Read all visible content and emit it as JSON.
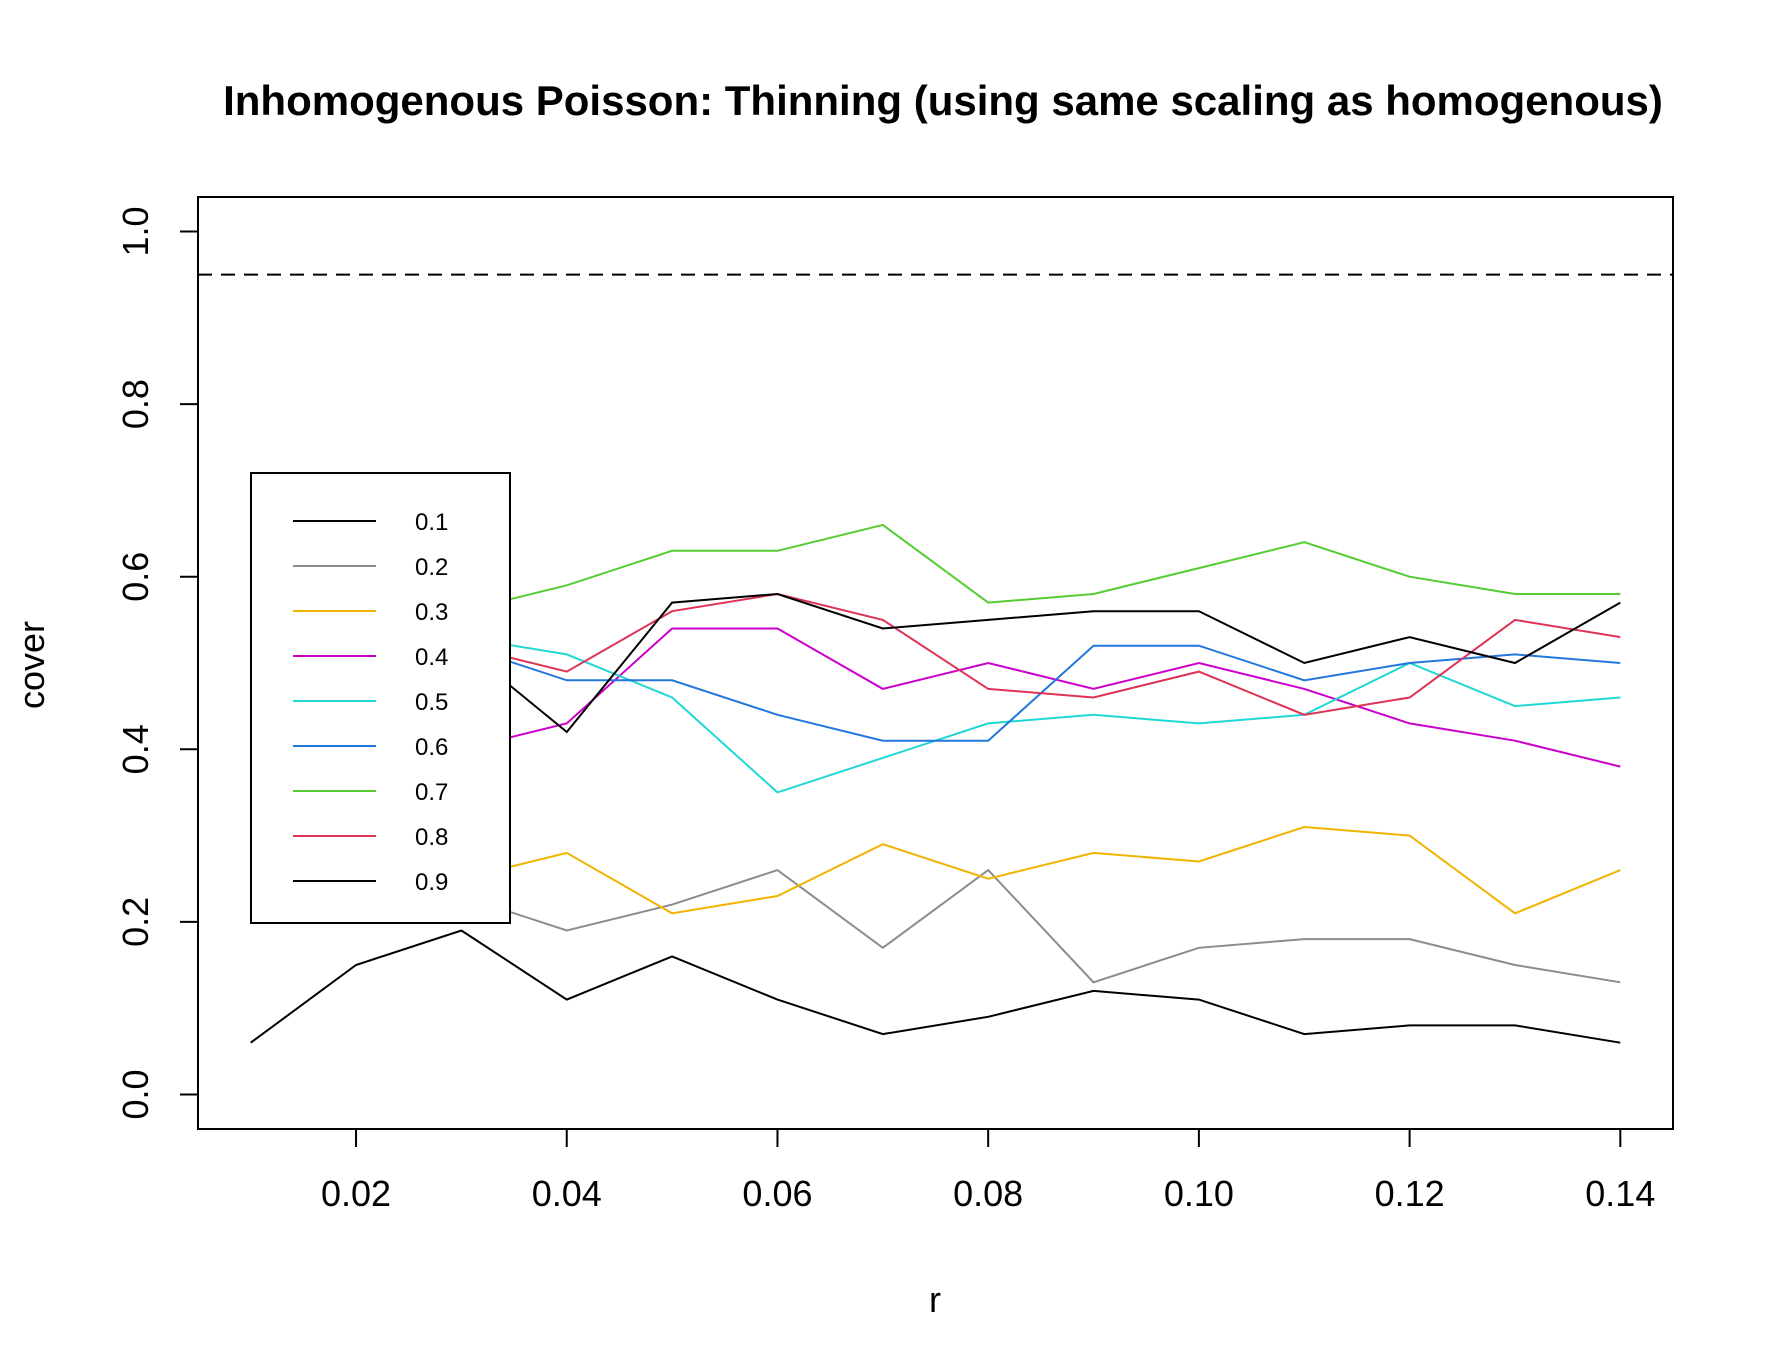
{
  "chart_data": {
    "type": "line",
    "title": "Inhomogenous Poisson: Thinning (using same scaling as homogenous)",
    "xlabel": "r",
    "ylabel": "cover",
    "xlim": [
      0.005,
      0.145
    ],
    "ylim": [
      -0.04,
      1.04
    ],
    "xticks": [
      0.02,
      0.04,
      0.06,
      0.08,
      0.1,
      0.12,
      0.14
    ],
    "xtick_labels": [
      "0.02",
      "0.04",
      "0.06",
      "0.08",
      "0.10",
      "0.12",
      "0.14"
    ],
    "yticks": [
      0.0,
      0.2,
      0.4,
      0.6,
      0.8,
      1.0
    ],
    "ytick_labels": [
      "0.0",
      "0.2",
      "0.4",
      "0.6",
      "0.8",
      "1.0"
    ],
    "reference_line": {
      "y": 0.95,
      "style": "dashed",
      "color": "#000000"
    },
    "legend_position": "left",
    "x": [
      0.01,
      0.02,
      0.03,
      0.04,
      0.05,
      0.06,
      0.07,
      0.08,
      0.09,
      0.1,
      0.11,
      0.12,
      0.13,
      0.14
    ],
    "series": [
      {
        "name": "0.1",
        "legend_label": "0.1",
        "color": "#000000",
        "values": [
          0.06,
          0.15,
          0.19,
          0.11,
          0.16,
          0.11,
          0.07,
          0.09,
          0.12,
          0.11,
          0.07,
          0.08,
          0.08,
          0.06
        ]
      },
      {
        "name": "0.2",
        "legend_label": " 0.2",
        "color": "#8c8c8c",
        "values": [
          0.2,
          0.22,
          0.23,
          0.19,
          0.22,
          0.26,
          0.17,
          0.26,
          0.13,
          0.17,
          0.18,
          0.18,
          0.15,
          0.13
        ]
      },
      {
        "name": "0.3",
        "legend_label": "0.3",
        "color": "#f0b400",
        "values": [
          0.24,
          0.25,
          0.25,
          0.28,
          0.21,
          0.23,
          0.29,
          0.25,
          0.28,
          0.27,
          0.31,
          0.3,
          0.21,
          0.26
        ]
      },
      {
        "name": "0.4",
        "legend_label": "0.4",
        "color": "#cc00cc",
        "values": [
          0.39,
          0.4,
          0.4,
          0.43,
          0.54,
          0.54,
          0.47,
          0.5,
          0.47,
          0.5,
          0.47,
          0.43,
          0.41,
          0.38
        ]
      },
      {
        "name": "0.5",
        "legend_label": "0.5",
        "color": "#22d6d6",
        "values": [
          0.5,
          0.52,
          0.53,
          0.51,
          0.46,
          0.35,
          0.39,
          0.43,
          0.44,
          0.43,
          0.44,
          0.5,
          0.45,
          0.46
        ]
      },
      {
        "name": "0.6",
        "legend_label": "0.6",
        "color": "#2277dd",
        "values": [
          0.47,
          0.51,
          0.52,
          0.48,
          0.48,
          0.44,
          0.41,
          0.41,
          0.52,
          0.52,
          0.48,
          0.5,
          0.51,
          0.5
        ]
      },
      {
        "name": "0.7",
        "legend_label": "0.7",
        "color": "#55cc33",
        "values": [
          0.54,
          0.56,
          0.56,
          0.59,
          0.63,
          0.63,
          0.66,
          0.57,
          0.58,
          0.61,
          0.64,
          0.6,
          0.58,
          0.58
        ]
      },
      {
        "name": "0.8",
        "legend_label": "0.8",
        "color": "#dd3355",
        "values": [
          0.51,
          0.52,
          0.52,
          0.49,
          0.56,
          0.58,
          0.55,
          0.47,
          0.46,
          0.49,
          0.44,
          0.46,
          0.55,
          0.53
        ]
      },
      {
        "name": "0.9",
        "legend_label": "0.9",
        "color": "#000000",
        "values": [
          0.51,
          0.52,
          0.52,
          0.42,
          0.57,
          0.58,
          0.54,
          0.55,
          0.56,
          0.56,
          0.5,
          0.53,
          0.5,
          0.57
        ]
      }
    ]
  }
}
